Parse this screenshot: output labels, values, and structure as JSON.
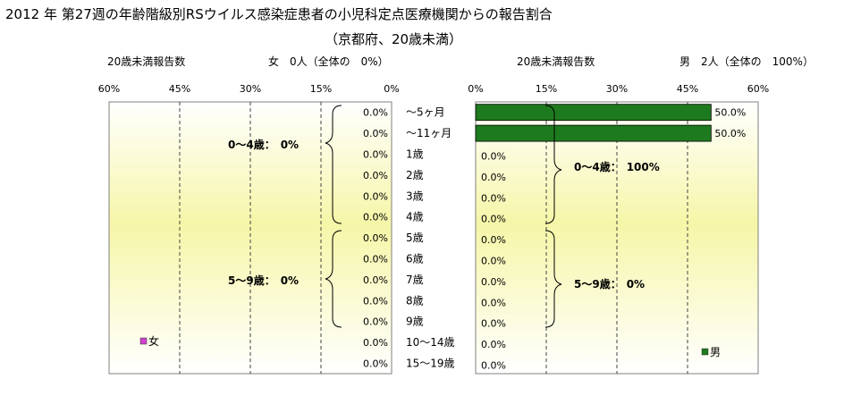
{
  "chart_data": {
    "type": "bar",
    "title": "2012 年 第27週の年齢階級別RSウイルス感染症患者の小児科定点医療機関からの報告割合",
    "subtitle": "（京都府、20歳未満）",
    "categories": [
      "～5ヶ月",
      "～11ヶ月",
      "1歳",
      "2歳",
      "3歳",
      "4歳",
      "5歳",
      "6歳",
      "7歳",
      "8歳",
      "9歳",
      "10～14歳",
      "15～19歳"
    ],
    "xlim": [
      0,
      60
    ],
    "ticks": [
      "60%",
      "45%",
      "30%",
      "15%",
      "0%"
    ],
    "ticks_right": [
      "0%",
      "15%",
      "30%",
      "45%",
      "60%"
    ],
    "series": [
      {
        "name": "女",
        "header_left": "20歳未満報告数",
        "header_right": "女　0人（全体の　0%）",
        "color": "#cc44cc",
        "values": [
          0,
          0,
          0,
          0,
          0,
          0,
          0,
          0,
          0,
          0,
          0,
          0,
          0
        ],
        "labels": [
          "0.0%",
          "0.0%",
          "0.0%",
          "0.0%",
          "0.0%",
          "0.0%",
          "0.0%",
          "0.0%",
          "0.0%",
          "0.0%",
          "0.0%",
          "0.0%",
          "0.0%"
        ],
        "group_labels": [
          "0～4歳：　0%",
          "5～9歳：　0%"
        ]
      },
      {
        "name": "男",
        "header_left": "20歳未満報告数",
        "header_right": "男　2人（全体の　100%）",
        "color": "#1e7a1e",
        "values": [
          50,
          50,
          0,
          0,
          0,
          0,
          0,
          0,
          0,
          0,
          0,
          0,
          0
        ],
        "labels": [
          "50.0%",
          "50.0%",
          "0.0%",
          "0.0%",
          "0.0%",
          "0.0%",
          "0.0%",
          "0.0%",
          "0.0%",
          "0.0%",
          "0.0%",
          "0.0%",
          "0.0%"
        ],
        "group_labels": [
          "0～4歳：　100%",
          "5～9歳：　0%"
        ]
      }
    ],
    "grid": true
  }
}
